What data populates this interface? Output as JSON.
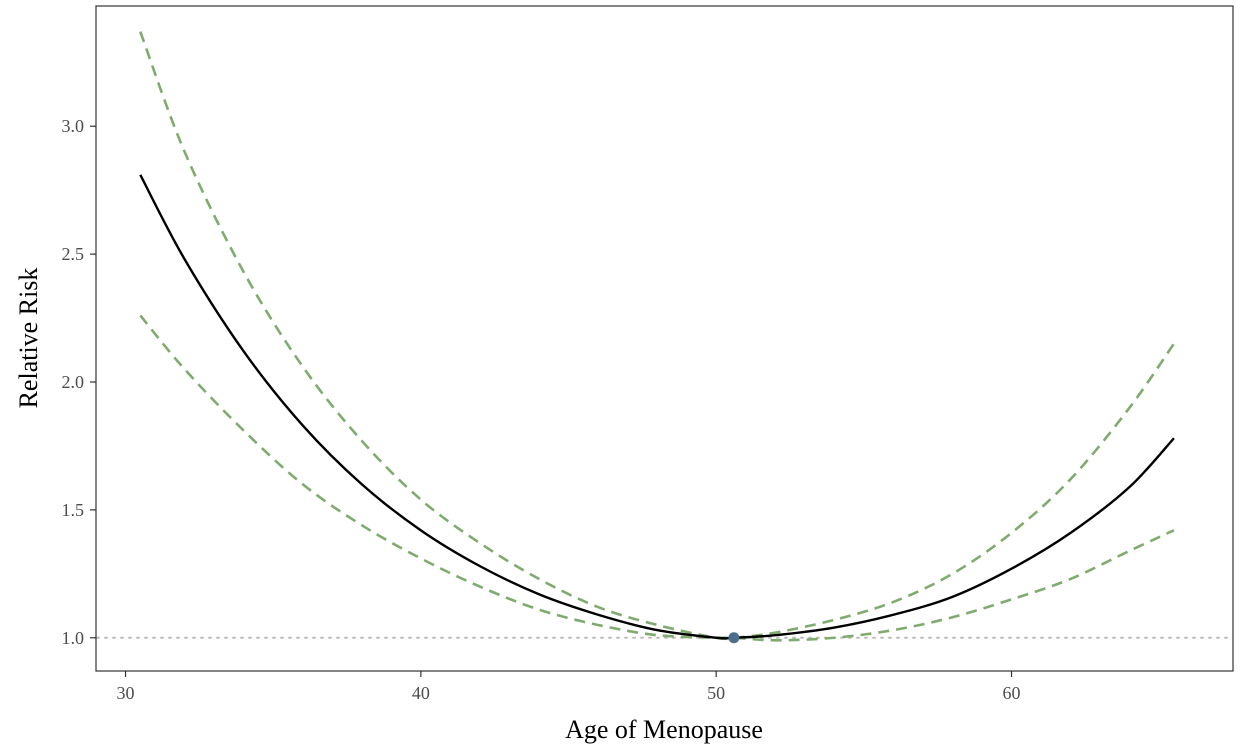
{
  "chart_data": {
    "type": "line",
    "xlabel": "Age of Menopause",
    "ylabel": "Relative Risk",
    "xlim": [
      29,
      67.5
    ],
    "ylim": [
      0.87,
      3.47
    ],
    "x_ticks": [
      30,
      40,
      50,
      60
    ],
    "x_tick_labels": [
      "30",
      "40",
      "50",
      "60"
    ],
    "y_ticks": [
      1.0,
      1.5,
      2.0,
      2.5,
      3.0
    ],
    "y_tick_labels": [
      "1.0",
      "1.5",
      "2.0",
      "2.5",
      "3.0"
    ],
    "grid": false,
    "legend": "none",
    "reference_line": {
      "y": 1.0,
      "style": "dotted",
      "color": "#bdbdbd"
    },
    "reference_point": {
      "x": 50.6,
      "y": 1.0,
      "color": "#4e6e8e"
    },
    "series": [
      {
        "style": "solid",
        "color": "#000000",
        "x": [
          30.5,
          32,
          34,
          36,
          38,
          40,
          42,
          44,
          46,
          48,
          50,
          50.6,
          52,
          54,
          56,
          58,
          60,
          62,
          64,
          65.5
        ],
        "y": [
          2.81,
          2.48,
          2.12,
          1.83,
          1.6,
          1.42,
          1.28,
          1.17,
          1.09,
          1.03,
          1.0,
          1.0,
          1.01,
          1.04,
          1.09,
          1.16,
          1.27,
          1.41,
          1.59,
          1.78
        ]
      },
      {
        "style": "dashed",
        "color": "#7fac6e",
        "x": [
          30.5,
          32,
          34,
          36,
          38,
          40,
          42,
          44,
          46,
          48,
          50,
          50.6,
          52,
          54,
          56,
          58,
          60,
          62,
          64,
          65.5
        ],
        "y": [
          3.37,
          2.9,
          2.43,
          2.06,
          1.77,
          1.54,
          1.37,
          1.23,
          1.12,
          1.05,
          1.0,
          1.0,
          1.02,
          1.07,
          1.14,
          1.25,
          1.41,
          1.62,
          1.9,
          2.15
        ]
      },
      {
        "style": "dashed",
        "color": "#7fac6e",
        "x": [
          30.5,
          32,
          34,
          36,
          38,
          40,
          42,
          44,
          46,
          48,
          50,
          50.6,
          52,
          54,
          56,
          58,
          60,
          62,
          64,
          65.5
        ],
        "y": [
          2.26,
          2.05,
          1.81,
          1.6,
          1.44,
          1.31,
          1.2,
          1.11,
          1.05,
          1.01,
          1.0,
          1.0,
          0.99,
          1.0,
          1.03,
          1.08,
          1.15,
          1.23,
          1.34,
          1.42
        ]
      }
    ]
  }
}
